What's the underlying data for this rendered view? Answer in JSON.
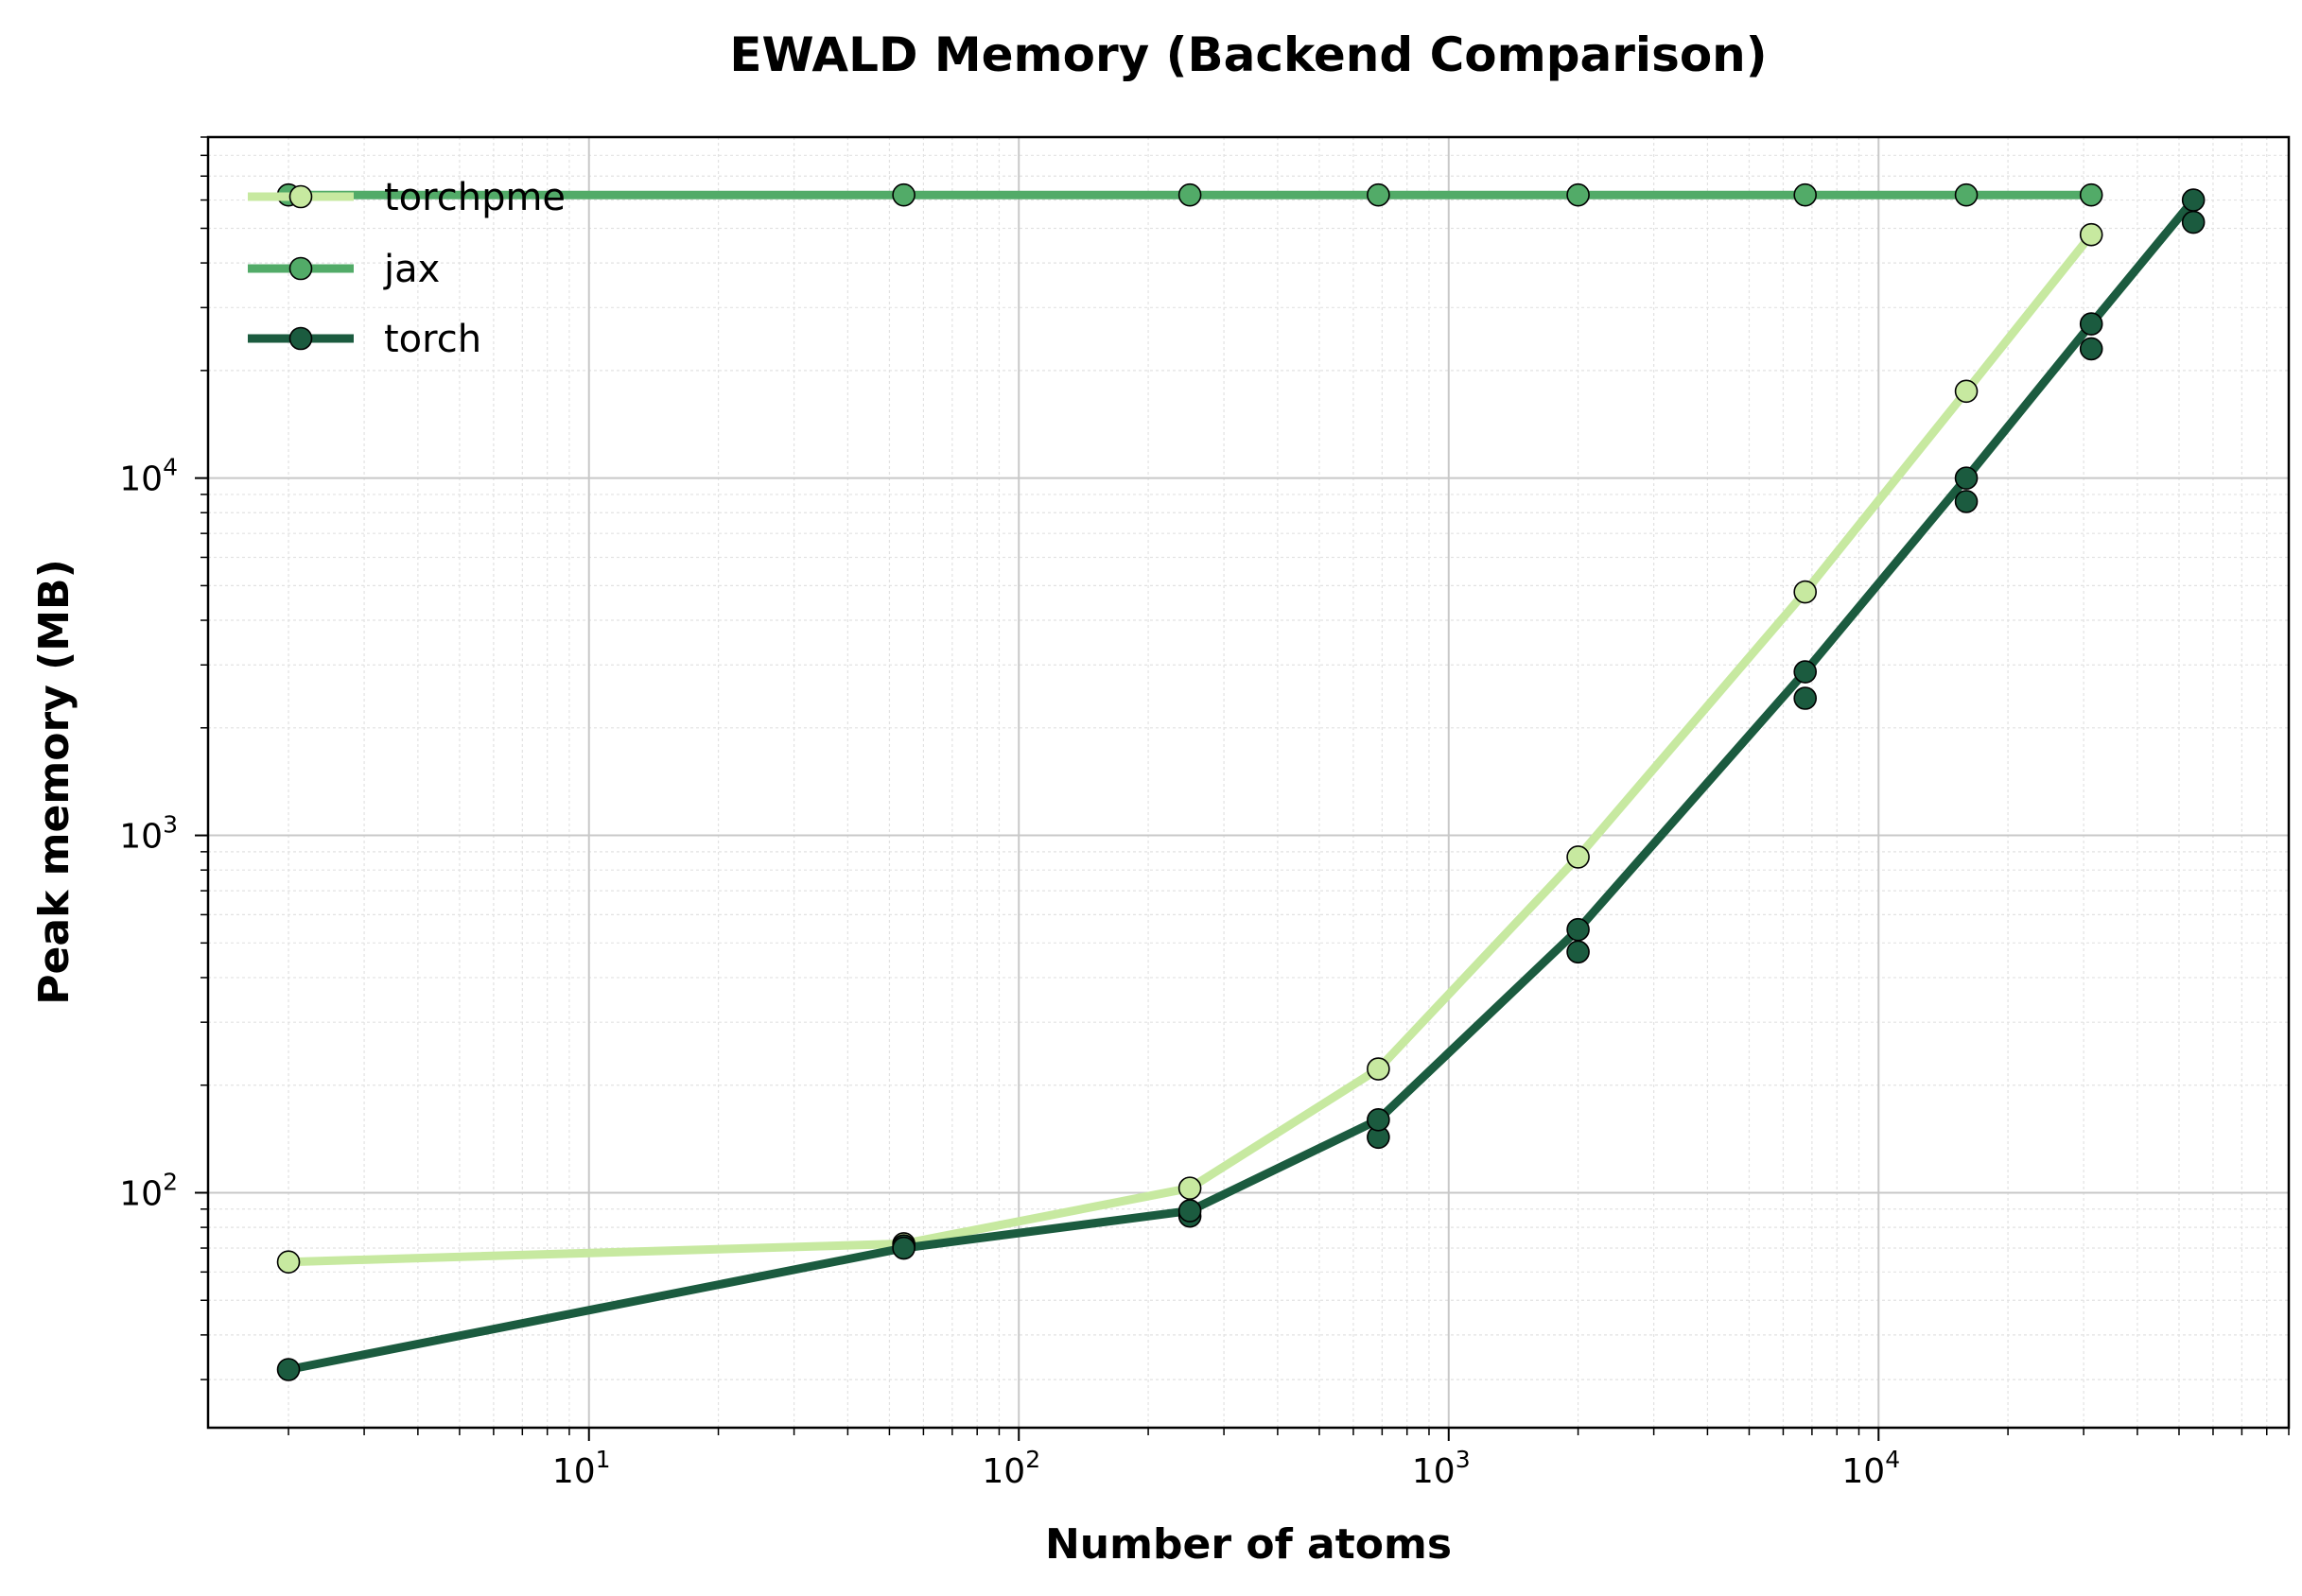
{
  "chart_data": {
    "type": "line",
    "title": "EWALD Memory (Backend Comparison)",
    "xlabel": "Number of atoms",
    "ylabel": "Peak memory (MB)",
    "xscale": "log",
    "yscale": "log",
    "xlim": [
      1.3,
      90000
    ],
    "ylim": [
      22,
      90000
    ],
    "x_ticks": [
      {
        "value": 10,
        "base": "10",
        "exp": "1"
      },
      {
        "value": 100,
        "base": "10",
        "exp": "2"
      },
      {
        "value": 1000,
        "base": "10",
        "exp": "3"
      },
      {
        "value": 10000,
        "base": "10",
        "exp": "4"
      }
    ],
    "y_ticks": [
      {
        "value": 100,
        "base": "10",
        "exp": "2"
      },
      {
        "value": 1000,
        "base": "10",
        "exp": "3"
      },
      {
        "value": 10000,
        "base": "10",
        "exp": "4"
      }
    ],
    "grid": true,
    "legend_position": "top-left",
    "series": [
      {
        "name": "torchpme",
        "color": "#c7e9a0",
        "x": [
          2,
          54,
          250,
          686,
          2000,
          6750,
          16000,
          31250
        ],
        "y": [
          64,
          72,
          103,
          222,
          870,
          4800,
          17500,
          48000
        ],
        "extra_points": []
      },
      {
        "name": "jax",
        "color": "#52ab68",
        "x": [
          2,
          54,
          250,
          686,
          2000,
          6750,
          16000,
          31250
        ],
        "y": [
          62000,
          62000,
          62000,
          62000,
          62000,
          62000,
          62000,
          62000
        ],
        "extra_points": []
      },
      {
        "name": "torch",
        "color": "#1b5b3f",
        "x": [
          2,
          54,
          250,
          686,
          2000,
          6750,
          16000,
          31250,
          54000
        ],
        "y": [
          32,
          70,
          89,
          160,
          545,
          2870,
          10000,
          27000,
          60000
        ],
        "extra_points": [
          {
            "x": 54,
            "y": 71
          },
          {
            "x": 250,
            "y": 86
          },
          {
            "x": 686,
            "y": 143
          },
          {
            "x": 2000,
            "y": 472
          },
          {
            "x": 6750,
            "y": 2420
          },
          {
            "x": 16000,
            "y": 8600
          },
          {
            "x": 31250,
            "y": 23000
          },
          {
            "x": 54000,
            "y": 52000
          }
        ]
      }
    ]
  }
}
